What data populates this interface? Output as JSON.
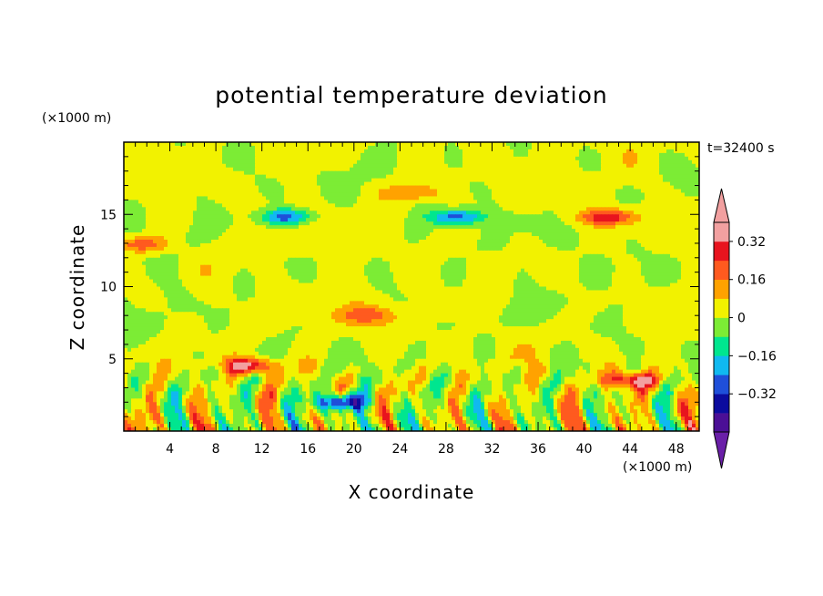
{
  "chart_data": {
    "type": "heatmap",
    "title": "potential temperature deviation",
    "xlabel": "X coordinate",
    "ylabel": "Z coordinate",
    "x_unit_label": "(×1000 m)",
    "y_unit_label": "(×1000 m)",
    "time_label": "t=32400 s",
    "xlim": [
      0,
      50
    ],
    "ylim": [
      0,
      20
    ],
    "x_ticks": [
      4,
      8,
      12,
      16,
      20,
      24,
      28,
      32,
      36,
      40,
      44,
      48
    ],
    "y_ticks": [
      5,
      10,
      15
    ],
    "colorbar": {
      "levels": [
        -0.48,
        -0.4,
        -0.32,
        -0.24,
        -0.16,
        -0.08,
        0,
        0.08,
        0.16,
        0.24,
        0.32,
        0.4
      ],
      "colors": [
        "#4b0f96",
        "#0b0b9e",
        "#1f4fd9",
        "#10b9f0",
        "#00e68f",
        "#7cec35",
        "#f2f200",
        "#ffa200",
        "#ff5a1f",
        "#e8141e",
        "#f2a0a0"
      ],
      "under_color": "#6a1fa8",
      "over_color": "#f2a0a0",
      "tick_labels": [
        "0.32",
        "0.16",
        "0",
        "−0.16",
        "−0.32"
      ],
      "tick_values": [
        0.32,
        0.16,
        0,
        -0.16,
        -0.32
      ]
    },
    "field_features": [
      {
        "x": 14,
        "z": 14.8,
        "value": -0.3
      },
      {
        "x": 29,
        "z": 14.8,
        "value": -0.3
      },
      {
        "x": 42,
        "z": 14.8,
        "value": 0.3
      },
      {
        "x": 1.5,
        "z": 12.9,
        "value": 0.22
      },
      {
        "x": 25,
        "z": 16.5,
        "value": 0.14
      },
      {
        "x": 21,
        "z": 8.0,
        "value": 0.18
      },
      {
        "x": 11,
        "z": 4.5,
        "value": 0.35
      },
      {
        "x": 19,
        "z": 2.0,
        "value": -0.4
      },
      {
        "x": 44,
        "z": 3.5,
        "value": 0.3
      }
    ]
  }
}
